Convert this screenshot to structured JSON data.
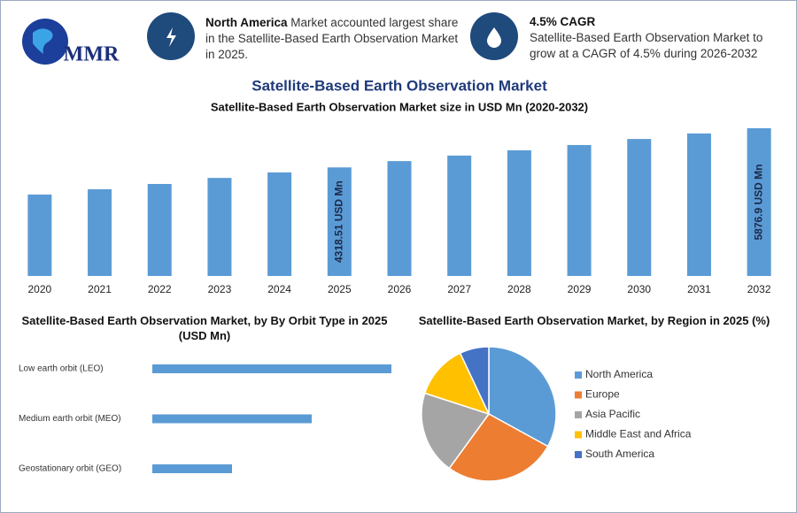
{
  "logo": "MMR",
  "highlights": [
    {
      "bold": "North America",
      "text": "Market accounted largest share in the Satellite-Based Earth Observation Market in 2025."
    },
    {
      "title": "4.5% CAGR",
      "text": "Satellite-Based Earth Observation Market to grow at a CAGR of 4.5% during 2026-2032"
    }
  ],
  "title": "Satellite-Based Earth Observation Market",
  "chart_data": [
    {
      "type": "bar",
      "title": "Satellite-Based Earth Observation Market size in USD Mn (2020-2032)",
      "categories": [
        "2020",
        "2021",
        "2022",
        "2023",
        "2024",
        "2025",
        "2026",
        "2027",
        "2028",
        "2029",
        "2030",
        "2031",
        "2032"
      ],
      "values": [
        3240,
        3450,
        3660,
        3900,
        4120,
        4318.51,
        4570,
        4790,
        5000,
        5210,
        5450,
        5670,
        5876.9
      ],
      "value_labels": [
        null,
        null,
        null,
        null,
        null,
        "4318.51 USD Mn",
        null,
        null,
        null,
        null,
        null,
        null,
        "5876.9 USD Mn"
      ],
      "color": "#5b9bd5"
    },
    {
      "type": "hbar",
      "title": "Satellite-Based Earth Observation Market, by By Orbit Type in 2025 (USD Mn)",
      "categories": [
        "Low earth orbit (LEO)",
        "Medium earth orbit (MEO)",
        "Geostationary orbit (GEO)"
      ],
      "values": [
        2160,
        1440,
        720
      ],
      "color": "#5b9bd5"
    },
    {
      "type": "pie",
      "title": "Satellite-Based Earth Observation Market, by Region in 2025 (%)",
      "categories": [
        "North America",
        "Europe",
        "Asia Pacific",
        "Middle East and Africa",
        "South America"
      ],
      "values": [
        33,
        27,
        20,
        13,
        7
      ],
      "colors": [
        "#5b9bd5",
        "#ed7d31",
        "#a5a5a5",
        "#ffc000",
        "#4472c4"
      ],
      "legend": "right"
    }
  ]
}
